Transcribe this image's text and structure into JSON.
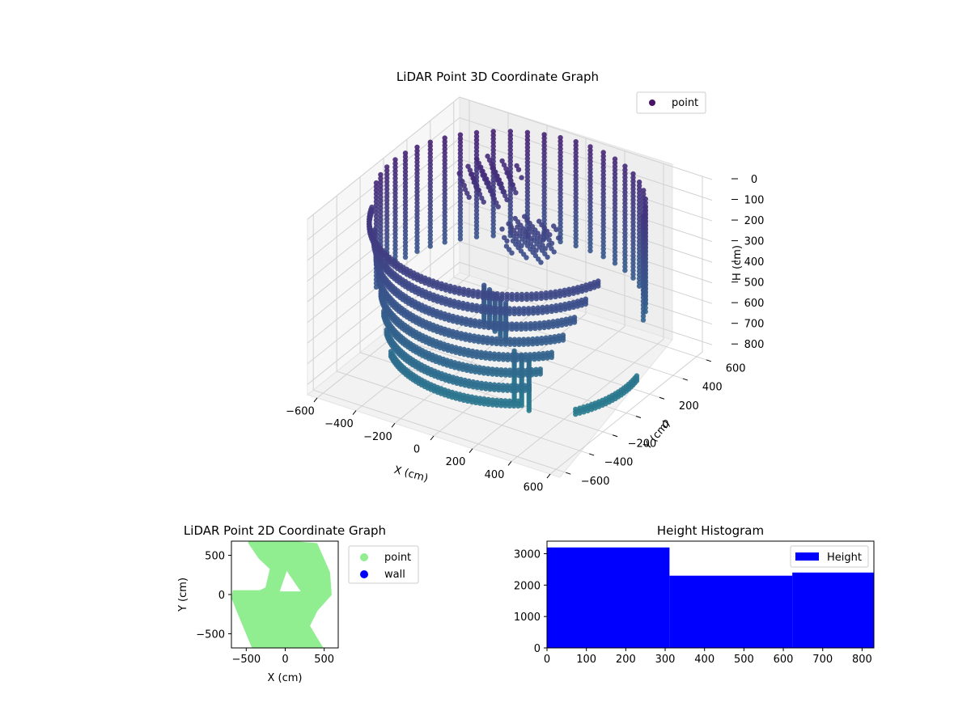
{
  "chart_data": [
    {
      "type": "scatter",
      "projection": "3d",
      "title": "LiDAR Point 3D Coordinate Graph",
      "xlabel": "X (cm)",
      "ylabel": "Y (cm)",
      "zlabel": "H (cm)",
      "xlim": [
        -650,
        650
      ],
      "ylim": [
        -650,
        650
      ],
      "zlim": [
        850,
        0
      ],
      "z_inverted": true,
      "x_ticks": [
        -600,
        -400,
        -200,
        0,
        200,
        400,
        600
      ],
      "x_tick_labels": [
        "−600",
        "−400",
        "−200",
        "0",
        "200",
        "400",
        "600"
      ],
      "y_ticks": [
        -600,
        -400,
        -200,
        0,
        200,
        400,
        600
      ],
      "y_tick_labels": [
        "−600",
        "−400",
        "−200",
        "0",
        "200",
        "400",
        "600"
      ],
      "z_ticks": [
        0,
        100,
        200,
        300,
        400,
        500,
        600,
        700,
        800
      ],
      "z_tick_labels": [
        "0",
        "100",
        "200",
        "300",
        "400",
        "500",
        "600",
        "700",
        "800"
      ],
      "grid": true,
      "legend": {
        "placement": "top-right",
        "entries": [
          {
            "label": "point",
            "color": "#471365"
          }
        ]
      },
      "series": [
        {
          "name": "point",
          "colormap": "viridis (dark purple near top, teal near bottom)",
          "structure": "curved scan-line bands sweeping around the sensor: a half-ring of vertical scan lines on the far side (arc roughly from angle 30° to 200°, radius about 600 cm, heights 0–500 cm), stacked horizontal arcs on the near-left side (radius 550–650 cm, heights 100–750 cm), short vertical strips near the centre, and a dark patch near the top on the left",
          "arcs": [
            {
              "angle_start_deg": 200,
              "angle_end_deg": 340,
              "radius": 620,
              "h": 120
            },
            {
              "angle_start_deg": 205,
              "angle_end_deg": 335,
              "radius": 600,
              "h": 200
            },
            {
              "angle_start_deg": 210,
              "angle_end_deg": 330,
              "radius": 590,
              "h": 280
            },
            {
              "angle_start_deg": 212,
              "angle_end_deg": 325,
              "radius": 580,
              "h": 360
            },
            {
              "angle_start_deg": 215,
              "angle_end_deg": 320,
              "radius": 570,
              "h": 440
            },
            {
              "angle_start_deg": 218,
              "angle_end_deg": 315,
              "radius": 560,
              "h": 520
            },
            {
              "angle_start_deg": 220,
              "angle_end_deg": 310,
              "radius": 550,
              "h": 600
            },
            {
              "angle_start_deg": 225,
              "angle_end_deg": 305,
              "radius": 540,
              "h": 680
            },
            {
              "angle_start_deg": 330,
              "angle_end_deg": 10,
              "radius": 600,
              "h": 720
            }
          ],
          "vertical_lines": {
            "angle_start_deg": 20,
            "angle_end_deg": 200,
            "count": 26,
            "radius": 600,
            "h_start": 0,
            "h_end": 520
          },
          "strips": [
            {
              "x": -60,
              "y": -120,
              "h_start": 380,
              "h_end": 560
            },
            {
              "x": -20,
              "y": -140,
              "h_start": 380,
              "h_end": 560
            },
            {
              "x": 20,
              "y": -160,
              "h_start": 380,
              "h_end": 560
            },
            {
              "x": 60,
              "y": -180,
              "h_start": 380,
              "h_end": 560
            },
            {
              "x": 100,
              "y": -200,
              "h_start": 380,
              "h_end": 560
            },
            {
              "x": 180,
              "y": -260,
              "h_start": 560,
              "h_end": 800
            },
            {
              "x": 230,
              "y": -280,
              "h_start": 560,
              "h_end": 800
            },
            {
              "x": 280,
              "y": -300,
              "h_start": 560,
              "h_end": 800
            }
          ],
          "patches": [
            {
              "x_range": [
                -350,
                -150
              ],
              "y_range": [
                150,
                350
              ],
              "h_range": [
                50,
                150
              ]
            },
            {
              "x_range": [
                -100,
                100
              ],
              "y_range": [
                100,
                250
              ],
              "h_range": [
                220,
                320
              ]
            }
          ]
        }
      ]
    },
    {
      "type": "scatter",
      "title": "LiDAR Point 2D Coordinate Graph",
      "xlabel": "X (cm)",
      "ylabel": "Y (cm)",
      "xlim": [
        -690,
        680
      ],
      "ylim": [
        -680,
        680
      ],
      "x_ticks": [
        -500,
        0,
        500
      ],
      "x_tick_labels": [
        "−500",
        "0",
        "500"
      ],
      "y_ticks": [
        -500,
        0,
        500
      ],
      "y_tick_labels": [
        "−500",
        "0",
        "500"
      ],
      "grid": false,
      "legend": {
        "placement": "outside-right",
        "entries": [
          {
            "label": "point",
            "color": "#90ee90"
          },
          {
            "label": "wall",
            "color": "#0000ff"
          }
        ]
      },
      "series": [
        {
          "name": "point",
          "color": "#90ee90",
          "region_outline": [
            [
              -460,
              660
            ],
            [
              -80,
              680
            ],
            [
              400,
              640
            ],
            [
              560,
              280
            ],
            [
              580,
              0
            ],
            [
              400,
              -200
            ],
            [
              300,
              -400
            ],
            [
              470,
              -680
            ],
            [
              -410,
              -680
            ],
            [
              -590,
              -250
            ],
            [
              -670,
              -50
            ],
            [
              -660,
              40
            ],
            [
              -320,
              40
            ],
            [
              -240,
              80
            ],
            [
              -180,
              330
            ],
            [
              -330,
              470
            ]
          ],
          "notch": [
            [
              -70,
              40
            ],
            [
              200,
              40
            ],
            [
              170,
              80
            ],
            [
              20,
              300
            ]
          ]
        },
        {
          "name": "wall",
          "color": "#0000ff",
          "points": []
        }
      ]
    },
    {
      "type": "bar",
      "subtype": "histogram",
      "title": "Height Histogram",
      "xlim": [
        0,
        830
      ],
      "ylim": [
        0,
        3400
      ],
      "x_ticks": [
        0,
        100,
        200,
        300,
        400,
        500,
        600,
        700,
        800
      ],
      "y_ticks": [
        0,
        1000,
        2000,
        3000
      ],
      "grid": false,
      "legend": {
        "placement": "top-right",
        "entries": [
          {
            "label": "Height",
            "color": "#0000ff"
          }
        ]
      },
      "series": [
        {
          "name": "Height",
          "color": "#0000ff",
          "bins": [
            {
              "x0": 0,
              "x1": 311,
              "count": 3200
            },
            {
              "x0": 311,
              "x1": 623,
              "count": 2300
            },
            {
              "x0": 623,
              "x1": 830,
              "count": 2400
            }
          ]
        }
      ]
    }
  ]
}
